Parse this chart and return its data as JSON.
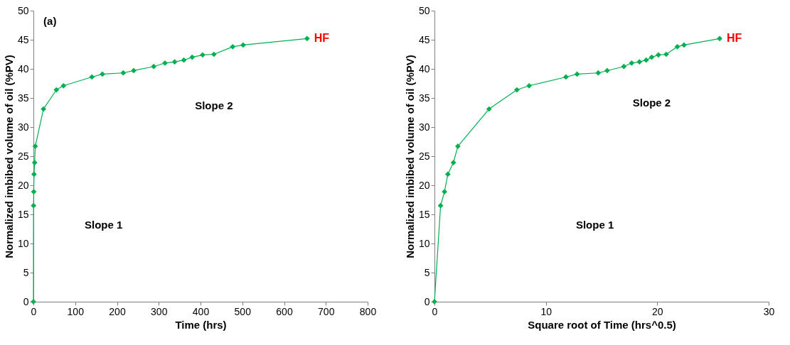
{
  "chart_data": [
    {
      "type": "line",
      "xlabel": "Time (hrs)",
      "ylabel": "Normalized imbibed volume of oil (%PV)",
      "xlim": [
        0,
        800
      ],
      "xticks": [
        0,
        100,
        200,
        300,
        400,
        500,
        600,
        700,
        800
      ],
      "ylim": [
        0,
        50
      ],
      "yticks": [
        0,
        5,
        10,
        15,
        20,
        25,
        30,
        35,
        40,
        45,
        50
      ],
      "grid": false,
      "marker": "diamond",
      "line_style": "solid",
      "series": [
        {
          "name": "HF",
          "color": "#00b050",
          "x": [
            0,
            0.3,
            0.8,
            1.5,
            3,
            4.4,
            24,
            55,
            72,
            140,
            165,
            215,
            240,
            288,
            315,
            338,
            360,
            380,
            405,
            432,
            477,
            502,
            655
          ],
          "values": [
            0,
            16.5,
            18.9,
            21.9,
            23.9,
            26.7,
            33.1,
            36.4,
            37.1,
            38.6,
            39.1,
            39.3,
            39.7,
            40.4,
            41.0,
            41.2,
            41.5,
            42.0,
            42.4,
            42.5,
            43.8,
            44.1,
            45.2
          ]
        }
      ],
      "annotations": [
        "(a)",
        "Slope 1",
        "Slope 2"
      ]
    },
    {
      "type": "line",
      "xlabel": "Square root of Time (hrs^0.5)",
      "ylabel": "Normalized imbibed volume of oil (%PV)",
      "xlim": [
        0,
        30
      ],
      "xticks": [
        0,
        10,
        20,
        30
      ],
      "ylim": [
        0,
        50
      ],
      "yticks": [
        0,
        5,
        10,
        15,
        20,
        25,
        30,
        35,
        40,
        45,
        50
      ],
      "grid": false,
      "marker": "diamond",
      "line_style": "solid",
      "series": [
        {
          "name": "HF",
          "color": "#00b050",
          "x": [
            0,
            0.55,
            0.9,
            1.2,
            1.7,
            2.1,
            4.9,
            7.4,
            8.5,
            11.8,
            12.8,
            14.7,
            15.5,
            17.0,
            17.7,
            18.4,
            19.0,
            19.5,
            20.1,
            20.8,
            21.8,
            22.4,
            25.6
          ],
          "values": [
            0,
            16.5,
            18.9,
            21.9,
            23.9,
            26.7,
            33.1,
            36.4,
            37.1,
            38.6,
            39.1,
            39.3,
            39.7,
            40.4,
            41.0,
            41.2,
            41.5,
            42.0,
            42.4,
            42.5,
            43.8,
            44.1,
            45.2
          ]
        }
      ],
      "annotations": [
        "Slope 1",
        "Slope 2"
      ]
    }
  ]
}
